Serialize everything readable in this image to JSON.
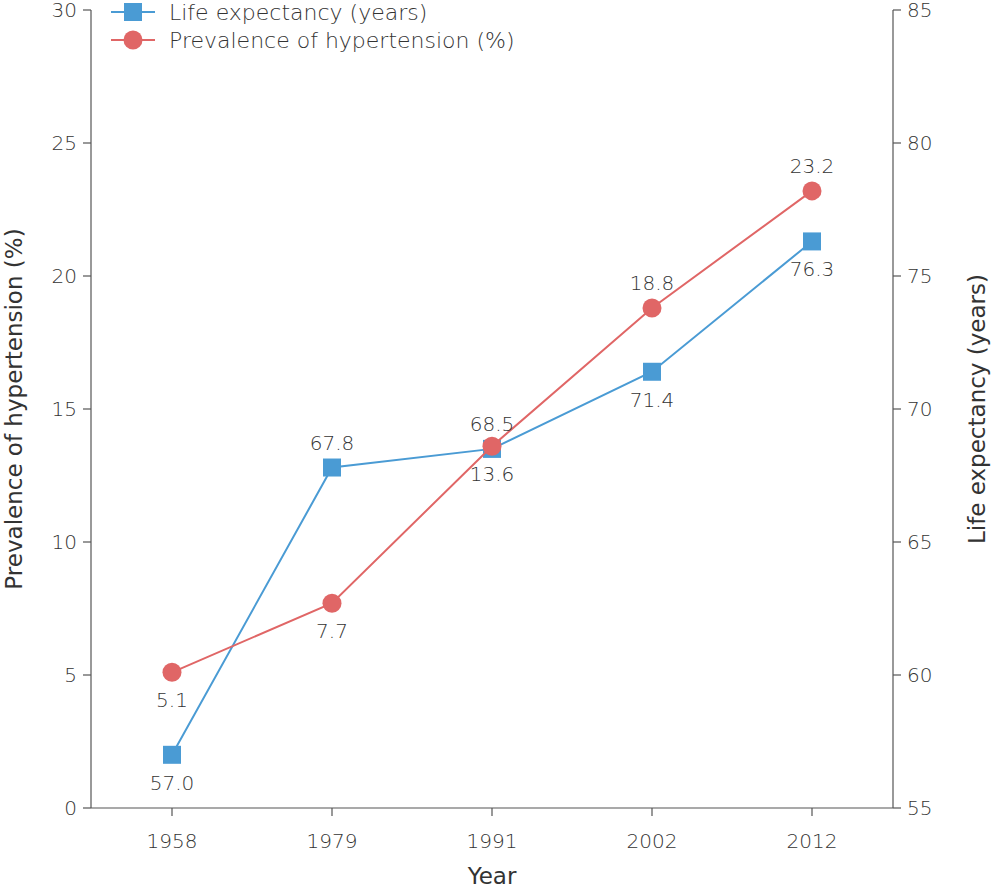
{
  "chart_data": {
    "type": "line",
    "x_label": "Year",
    "y_label": "Prevalence of hypertension (%)",
    "y2_label": "Life expectancy (years)",
    "categories": [
      "1958",
      "1979",
      "1991",
      "2002",
      "2012"
    ],
    "series": [
      {
        "name": "Life expectancy (years)",
        "color": "#4a9bd4",
        "marker": "square",
        "line_style": "solid",
        "axis": "y2",
        "values": [
          57.0,
          67.8,
          68.5,
          71.4,
          76.3
        ],
        "value_labels": [
          "57.0",
          "67.8",
          "68.5",
          "71.4",
          "76.3"
        ]
      },
      {
        "name": "Prevalence of hypertension (%)",
        "color": "#e06666",
        "marker": "circle",
        "line_style": "solid",
        "values": [
          5.1,
          7.7,
          13.6,
          18.8,
          23.2
        ]
      }
    ],
    "ylim": [
      0,
      30
    ],
    "yticks": [
      0,
      5,
      10,
      15,
      20,
      25,
      30
    ],
    "y2lim": [
      55,
      85
    ],
    "y2ticks": [
      55,
      60,
      65,
      70,
      75,
      80,
      85
    ],
    "grid": false,
    "legend": "top-left",
    "data_labels": true
  }
}
